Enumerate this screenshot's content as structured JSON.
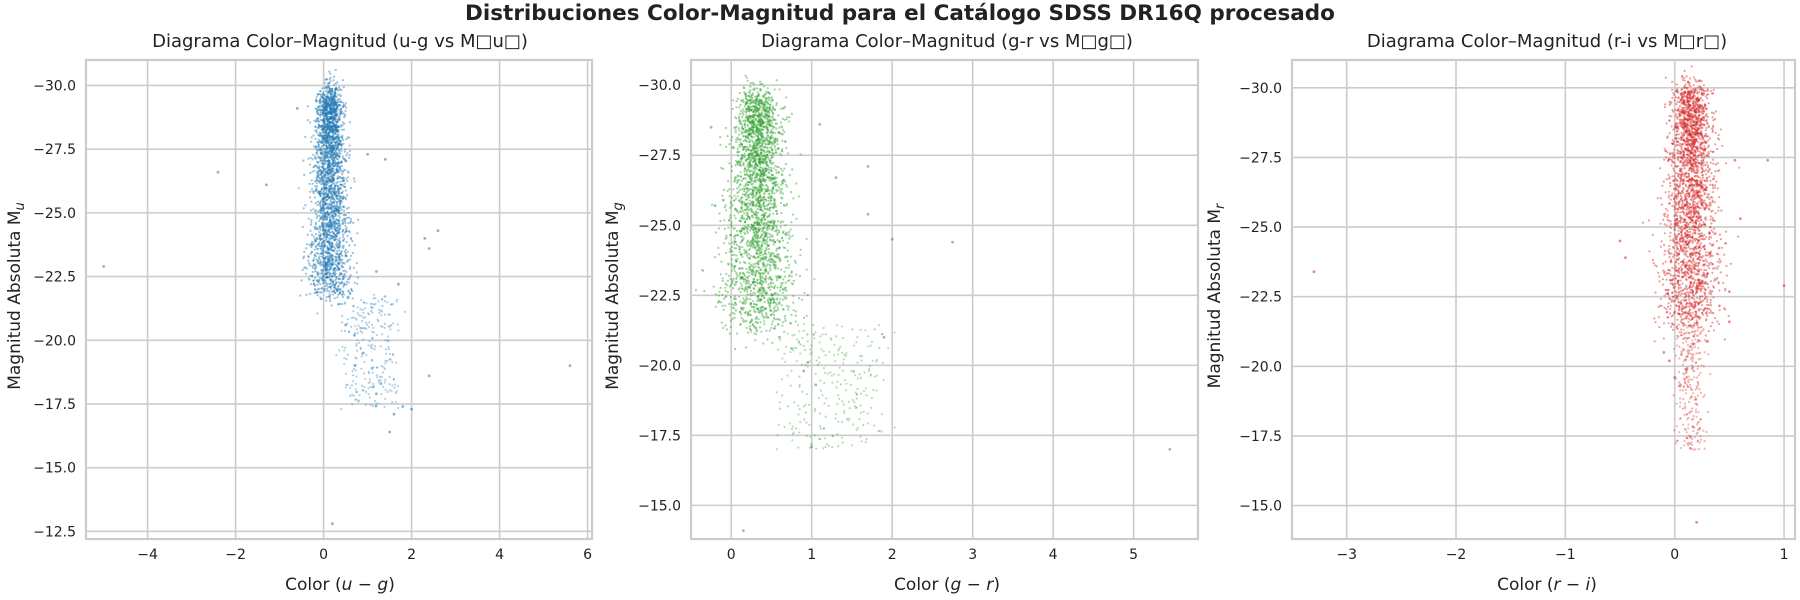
{
  "figure": {
    "suptitle": "Distribuciones Color-Magnitud para el Catálogo SDSS DR16Q procesado"
  },
  "chart_data": [
    {
      "type": "scatter",
      "title": "Diagrama Color–Magnitud (u-g vs M□u□)",
      "xlabel_prefix": "Color (",
      "xlabel_math": "u − g",
      "xlabel_suffix": ")",
      "ylabel_prefix": "Magnitud Absoluta M",
      "ylabel_sub": "u",
      "xlim": [
        -5.4,
        6.1
      ],
      "ylim": [
        -31.0,
        -12.2
      ],
      "y_inverted": true,
      "xticks": [
        -4,
        -2,
        0,
        2,
        4,
        6
      ],
      "yticks": [
        -30.0,
        -27.5,
        -25.0,
        -22.5,
        -20.0,
        -17.5,
        -15.0,
        -12.5
      ],
      "ytick_labels": [
        "−30.0",
        "−27.5",
        "−25.0",
        "−22.5",
        "−20.0",
        "−17.5",
        "−15.0",
        "−12.5"
      ],
      "xtick_labels": [
        "−4",
        "−2",
        "0",
        "2",
        "4",
        "6"
      ],
      "grid": true,
      "color": "#1f77b4",
      "core": {
        "x_center": 0.15,
        "x_spread": 0.14,
        "y_min": -29.6,
        "y_max": -21.8
      },
      "points": [
        {
          "x": -5.0,
          "y": -22.9
        },
        {
          "x": -2.4,
          "y": -26.6
        },
        {
          "x": -1.3,
          "y": -26.1
        },
        {
          "x": -0.6,
          "y": -29.1
        },
        {
          "x": 1.0,
          "y": -27.3
        },
        {
          "x": 1.4,
          "y": -27.1
        },
        {
          "x": 1.2,
          "y": -22.7
        },
        {
          "x": 1.7,
          "y": -22.2
        },
        {
          "x": 2.3,
          "y": -24.0
        },
        {
          "x": 2.6,
          "y": -24.3
        },
        {
          "x": 2.4,
          "y": -23.6
        },
        {
          "x": 2.4,
          "y": -18.6
        },
        {
          "x": 2.0,
          "y": -17.3
        },
        {
          "x": 1.8,
          "y": -17.4
        },
        {
          "x": 1.5,
          "y": -16.4
        },
        {
          "x": 1.6,
          "y": -17.1
        },
        {
          "x": 5.6,
          "y": -19.0
        },
        {
          "x": 0.2,
          "y": -12.8
        },
        {
          "x": 0.5,
          "y": -20.6
        },
        {
          "x": 0.7,
          "y": -20.2
        },
        {
          "x": 0.9,
          "y": -19.5
        },
        {
          "x": 1.1,
          "y": -18.9
        },
        {
          "x": 1.3,
          "y": -18.3
        },
        {
          "x": 1.2,
          "y": -17.9
        }
      ]
    },
    {
      "type": "scatter",
      "title": "Diagrama Color–Magnitud (g-r vs M□g□)",
      "xlabel_prefix": "Color (",
      "xlabel_math": "g − r",
      "xlabel_suffix": ")",
      "ylabel_prefix": "Magnitud Absoluta M",
      "ylabel_sub": "g",
      "xlim": [
        -0.5,
        5.8
      ],
      "ylim": [
        -30.9,
        -13.8
      ],
      "y_inverted": true,
      "xticks": [
        0,
        1,
        2,
        3,
        4,
        5
      ],
      "yticks": [
        -30.0,
        -27.5,
        -25.0,
        -22.5,
        -20.0,
        -17.5,
        -15.0
      ],
      "ytick_labels": [
        "−30.0",
        "−27.5",
        "−25.0",
        "−22.5",
        "−20.0",
        "−17.5",
        "−15.0"
      ],
      "xtick_labels": [
        "0",
        "1",
        "2",
        "3",
        "4",
        "5"
      ],
      "grid": true,
      "color": "#2ca02c",
      "core": {
        "x_center": 0.33,
        "x_spread": 0.13,
        "y_min": -29.5,
        "y_max": -21.5
      },
      "points": [
        {
          "x": -0.25,
          "y": -28.5
        },
        {
          "x": -0.2,
          "y": -25.7
        },
        {
          "x": -0.1,
          "y": -25.9
        },
        {
          "x": 1.1,
          "y": -28.6
        },
        {
          "x": 1.3,
          "y": -26.7
        },
        {
          "x": 1.7,
          "y": -27.1
        },
        {
          "x": 1.7,
          "y": -25.4
        },
        {
          "x": 2.0,
          "y": -24.5
        },
        {
          "x": 2.75,
          "y": -24.4
        },
        {
          "x": 1.9,
          "y": -21.0
        },
        {
          "x": 5.45,
          "y": -17.0
        },
        {
          "x": 0.15,
          "y": -14.1
        },
        {
          "x": 1.0,
          "y": -17.1
        },
        {
          "x": 0.9,
          "y": -19.8
        },
        {
          "x": 1.05,
          "y": -19.3
        },
        {
          "x": 0.75,
          "y": -20.6
        },
        {
          "x": 0.95,
          "y": -20.1
        },
        {
          "x": 0.6,
          "y": -21.0
        }
      ]
    },
    {
      "type": "scatter",
      "title": "Diagrama Color–Magnitud (r-i vs M□r□)",
      "xlabel_prefix": "Color (",
      "xlabel_math": "r − i",
      "xlabel_suffix": ")",
      "ylabel_prefix": "Magnitud Absoluta M",
      "ylabel_sub": "r",
      "xlim": [
        -3.5,
        1.1
      ],
      "ylim": [
        -31.0,
        -13.8
      ],
      "y_inverted": true,
      "xticks": [
        -3,
        -2,
        -1,
        0,
        1
      ],
      "yticks": [
        -30.0,
        -27.5,
        -25.0,
        -22.5,
        -20.0,
        -17.5,
        -15.0
      ],
      "ytick_labels": [
        "−30.0",
        "−27.5",
        "−25.0",
        "−22.5",
        "−20.0",
        "−17.5",
        "−15.0"
      ],
      "xtick_labels": [
        "−3",
        "−2",
        "−1",
        "0",
        "1"
      ],
      "grid": true,
      "color": "#d62728",
      "core": {
        "x_center": 0.15,
        "x_spread": 0.08,
        "y_min": -29.8,
        "y_max": -21.5
      },
      "points": [
        {
          "x": -3.3,
          "y": -23.4
        },
        {
          "x": -0.5,
          "y": -24.5
        },
        {
          "x": -0.45,
          "y": -23.9
        },
        {
          "x": 0.55,
          "y": -27.4
        },
        {
          "x": 0.6,
          "y": -25.3
        },
        {
          "x": 0.85,
          "y": -27.4
        },
        {
          "x": 1.0,
          "y": -22.9
        },
        {
          "x": 0.5,
          "y": -21.6
        },
        {
          "x": 0.2,
          "y": -14.4
        },
        {
          "x": -0.05,
          "y": -20.2
        },
        {
          "x": 0.0,
          "y": -19.6
        },
        {
          "x": 0.1,
          "y": -19.9
        },
        {
          "x": -0.1,
          "y": -20.5
        },
        {
          "x": 0.3,
          "y": -20.9
        },
        {
          "x": 0.05,
          "y": -19.3
        }
      ]
    }
  ]
}
